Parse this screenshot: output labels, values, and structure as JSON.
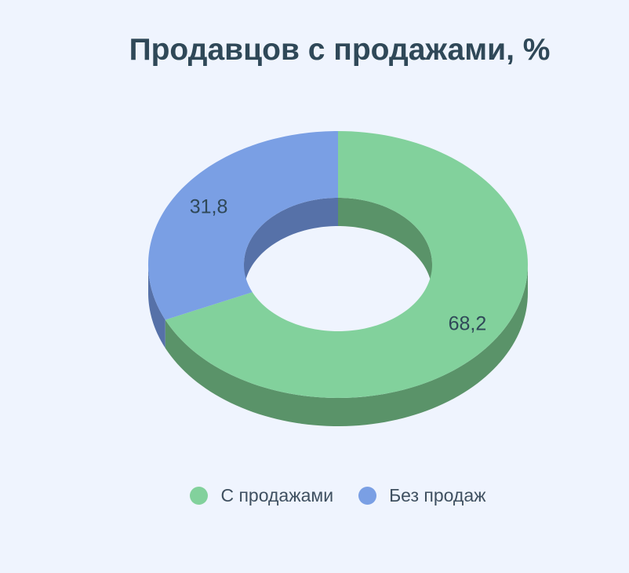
{
  "chart_data": {
    "type": "pie",
    "title": "Продавцов с продажами, %",
    "donut": true,
    "three_d": true,
    "legend_position": "bottom",
    "series": [
      {
        "name": "С продажами",
        "value": 68.2,
        "label": "68,2",
        "color": "#82d19c",
        "side_color": "#5a9369"
      },
      {
        "name": "Без продаж",
        "value": 31.8,
        "label": "31,8",
        "color": "#7a9fe4",
        "side_color": "#5671a8"
      }
    ]
  }
}
